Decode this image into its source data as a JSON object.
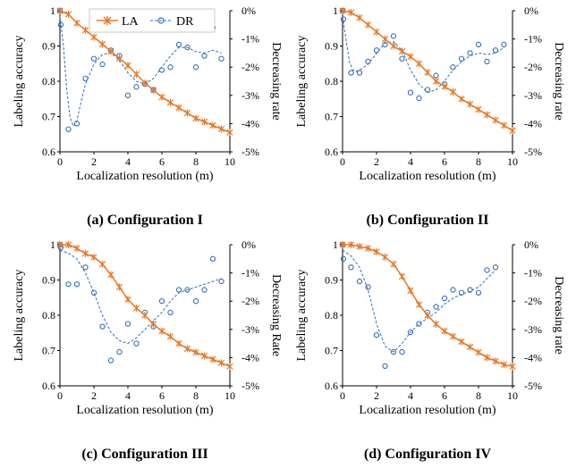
{
  "figure": {
    "legend": {
      "la_label": "LA",
      "dr_label": "DR"
    }
  },
  "chart_data": [
    {
      "type": "line",
      "caption": "(a) Configuration I",
      "xlabel": "Localization resolution (m)",
      "ylabel": "Labeling accuracy",
      "y2label": "Decreasing rate",
      "xlim": [
        0,
        10
      ],
      "ylim": [
        0.6,
        1
      ],
      "y2lim": [
        -5,
        0
      ],
      "xticks": [
        "0",
        "2",
        "4",
        "6",
        "8",
        "10"
      ],
      "yticks": [
        "0.6",
        "0.7",
        "0.8",
        "0.9",
        "1"
      ],
      "y2ticks": [
        "-5%",
        "-4%",
        "-3%",
        "-2%",
        "-1%",
        "0%"
      ],
      "legend_position": "top",
      "series": [
        {
          "name": "LA",
          "color": "#E87722",
          "marker": "asterisk",
          "x": [
            0,
            0.5,
            1,
            1.5,
            2,
            2.5,
            3,
            3.5,
            4,
            4.5,
            5,
            5.5,
            6,
            6.5,
            7,
            7.5,
            8,
            8.5,
            9,
            9.5,
            10
          ],
          "y": [
            1.0,
            0.99,
            0.965,
            0.945,
            0.925,
            0.905,
            0.885,
            0.865,
            0.845,
            0.82,
            0.795,
            0.775,
            0.755,
            0.74,
            0.725,
            0.71,
            0.695,
            0.685,
            0.675,
            0.665,
            0.655
          ]
        },
        {
          "name": "DR",
          "color": "#2F6EBA",
          "marker": "circle",
          "axis": "right",
          "x": [
            0,
            0.05,
            0.5,
            1,
            1.5,
            2,
            2.5,
            3,
            3.5,
            4,
            4.5,
            5,
            5.5,
            6,
            6.5,
            7,
            7.5,
            8,
            8.5,
            9,
            9.5
          ],
          "y": [
            0,
            -0.5,
            -4.2,
            -4.0,
            -2.4,
            -1.7,
            -1.9,
            -1.4,
            -1.6,
            -3.0,
            -2.7,
            -2.6,
            -2.8,
            -2.1,
            -2.0,
            -1.2,
            -1.3,
            -2.0,
            -1.6,
            -0.6,
            -1.7
          ],
          "trend_x": [
            0,
            0.2,
            0.4,
            0.6,
            0.8,
            1,
            1.25,
            1.5,
            2,
            2.5,
            3,
            3.5,
            4,
            4.5,
            5,
            5.5,
            6,
            6.5,
            7,
            7.5,
            8,
            8.5,
            9,
            9.5
          ],
          "trend_y": [
            -0.2,
            -1.2,
            -2.8,
            -3.8,
            -4.1,
            -3.9,
            -3.2,
            -2.6,
            -1.9,
            -1.55,
            -1.5,
            -1.75,
            -2.2,
            -2.5,
            -2.6,
            -2.4,
            -2.0,
            -1.6,
            -1.3,
            -1.3,
            -1.45,
            -1.5,
            -1.4,
            -1.5
          ]
        }
      ]
    },
    {
      "type": "line",
      "caption": "(b) Configuration II",
      "xlabel": "Localization resolution (m)",
      "ylabel": "Labeling accuracy",
      "y2label": "Decreasing rate",
      "xlim": [
        0,
        10
      ],
      "ylim": [
        0.6,
        1
      ],
      "y2lim": [
        -5,
        0
      ],
      "xticks": [
        "0",
        "2",
        "4",
        "6",
        "8",
        "10"
      ],
      "yticks": [
        "0.6",
        "0.7",
        "0.8",
        "0.9",
        "1"
      ],
      "y2ticks": [
        "-5%",
        "-4%",
        "-3%",
        "-2%",
        "-1%",
        "0%"
      ],
      "series": [
        {
          "name": "LA",
          "color": "#E87722",
          "marker": "asterisk",
          "x": [
            0,
            0.5,
            1,
            1.5,
            2,
            2.5,
            3,
            3.5,
            4,
            4.5,
            5,
            5.5,
            6,
            6.5,
            7,
            7.5,
            8,
            8.5,
            9,
            9.5,
            10
          ],
          "y": [
            1.0,
            0.995,
            0.98,
            0.96,
            0.94,
            0.92,
            0.9,
            0.885,
            0.87,
            0.85,
            0.825,
            0.8,
            0.785,
            0.77,
            0.75,
            0.735,
            0.72,
            0.705,
            0.69,
            0.675,
            0.66
          ]
        },
        {
          "name": "DR",
          "color": "#2F6EBA",
          "marker": "circle",
          "axis": "right",
          "x": [
            0,
            0.05,
            0.5,
            1,
            1.5,
            2,
            2.5,
            3,
            3.5,
            4,
            4.5,
            5,
            5.5,
            6,
            6.5,
            7,
            7.5,
            8,
            8.5,
            9,
            9.5
          ],
          "y": [
            0,
            -0.3,
            -2.2,
            -2.2,
            -1.8,
            -1.4,
            -1.2,
            -0.9,
            -1.7,
            -2.9,
            -3.1,
            -2.8,
            -2.3,
            -2.6,
            -2.0,
            -1.7,
            -1.5,
            -1.2,
            -1.8,
            -1.4,
            -1.2
          ],
          "trend_x": [
            0,
            0.2,
            0.4,
            0.6,
            0.8,
            1,
            1.5,
            2,
            2.5,
            3,
            3.5,
            4,
            4.5,
            5,
            5.5,
            6,
            6.5,
            7,
            7.5,
            8,
            8.5,
            9,
            9.5
          ],
          "trend_y": [
            -0.2,
            -1.0,
            -1.8,
            -2.1,
            -2.15,
            -2.1,
            -1.9,
            -1.5,
            -1.15,
            -1.1,
            -1.4,
            -2.1,
            -2.6,
            -2.9,
            -2.8,
            -2.5,
            -2.1,
            -1.8,
            -1.6,
            -1.5,
            -1.55,
            -1.5,
            -1.3
          ]
        }
      ]
    },
    {
      "type": "line",
      "caption": "(c) Configuration III",
      "xlabel": "Localization resolution (m)",
      "ylabel": "Labeling accuracy",
      "y2label": "Decreasing Rate",
      "xlim": [
        0,
        10
      ],
      "ylim": [
        0.6,
        1
      ],
      "y2lim": [
        -5,
        0
      ],
      "xticks": [
        "0",
        "2",
        "4",
        "6",
        "8",
        "10"
      ],
      "yticks": [
        "0.6",
        "0.7",
        "0.8",
        "0.9",
        "1"
      ],
      "y2ticks": [
        "-5%",
        "-4%",
        "-3%",
        "-2%",
        "-1%",
        "0%"
      ],
      "series": [
        {
          "name": "LA",
          "color": "#E87722",
          "marker": "asterisk",
          "x": [
            0,
            0.5,
            1,
            1.5,
            2,
            2.5,
            3,
            3.5,
            4,
            4.5,
            5,
            5.5,
            6,
            6.5,
            7,
            7.5,
            8,
            8.5,
            9,
            9.5,
            10
          ],
          "y": [
            1.0,
            1.0,
            0.99,
            0.975,
            0.965,
            0.945,
            0.915,
            0.88,
            0.845,
            0.82,
            0.8,
            0.775,
            0.755,
            0.74,
            0.72,
            0.705,
            0.695,
            0.685,
            0.675,
            0.665,
            0.655
          ]
        },
        {
          "name": "DR",
          "color": "#2F6EBA",
          "marker": "circle",
          "axis": "right",
          "x": [
            0,
            0.05,
            0.5,
            1,
            1.5,
            2,
            2.5,
            3,
            3.5,
            4,
            4.5,
            5,
            5.5,
            6,
            6.5,
            7,
            7.5,
            8,
            8.5,
            9,
            9.5
          ],
          "y": [
            0,
            -0.1,
            -1.4,
            -1.4,
            -0.8,
            -1.7,
            -2.9,
            -4.1,
            -3.8,
            -2.8,
            -3.5,
            -2.4,
            -2.9,
            -2.0,
            -2.4,
            -1.6,
            -1.6,
            -2.0,
            -1.6,
            -0.5,
            -1.3
          ],
          "trend_x": [
            0,
            0.5,
            1,
            1.5,
            2,
            2.5,
            3,
            3.5,
            4,
            4.5,
            5,
            5.5,
            6,
            6.5,
            7,
            7.5,
            8,
            8.5,
            9,
            9.5
          ],
          "trend_y": [
            -0.2,
            -0.3,
            -0.5,
            -1.0,
            -1.7,
            -2.5,
            -3.1,
            -3.4,
            -3.5,
            -3.3,
            -3.0,
            -2.7,
            -2.4,
            -2.0,
            -1.7,
            -1.6,
            -1.5,
            -1.4,
            -1.3,
            -1.2
          ]
        }
      ]
    },
    {
      "type": "line",
      "caption": "(d) Configuration IV",
      "xlabel": "Localization resolution (m)",
      "ylabel": "Labeling accuracy",
      "y2label": "Decreasing rate",
      "xlim": [
        0,
        10
      ],
      "ylim": [
        0.6,
        1
      ],
      "y2lim": [
        -5,
        0
      ],
      "xticks": [
        "0",
        "2",
        "4",
        "6",
        "8",
        "10"
      ],
      "yticks": [
        "0.6",
        "0.7",
        "0.8",
        "0.9",
        "1"
      ],
      "y2ticks": [
        "-5%",
        "-4%",
        "-3%",
        "-2%",
        "-1%",
        "0%"
      ],
      "series": [
        {
          "name": "LA",
          "color": "#E87722",
          "marker": "asterisk",
          "x": [
            0,
            0.5,
            1,
            1.5,
            2,
            2.5,
            3,
            3.5,
            4,
            4.5,
            5,
            5.5,
            6,
            6.5,
            7,
            7.5,
            8,
            8.5,
            9,
            9.5,
            10
          ],
          "y": [
            1.0,
            1.0,
            0.995,
            0.99,
            0.98,
            0.965,
            0.945,
            0.91,
            0.87,
            0.83,
            0.8,
            0.775,
            0.755,
            0.74,
            0.725,
            0.71,
            0.695,
            0.68,
            0.67,
            0.66,
            0.655
          ]
        },
        {
          "name": "DR",
          "color": "#2F6EBA",
          "marker": "circle",
          "axis": "right",
          "x": [
            0,
            0.05,
            0.5,
            1,
            1.5,
            2,
            2.5,
            3,
            3.5,
            4,
            4.5,
            5,
            5.5,
            6,
            6.5,
            7,
            7.5,
            8,
            8.5,
            9
          ],
          "y": [
            0,
            -0.5,
            -0.8,
            -1.3,
            -1.5,
            -3.2,
            -4.3,
            -3.8,
            -3.8,
            -3.1,
            -2.8,
            -2.4,
            -2.2,
            -1.9,
            -1.6,
            -1.7,
            -1.6,
            -1.7,
            -0.9,
            -0.8
          ],
          "trend_x": [
            0,
            0.5,
            1,
            1.5,
            2,
            2.5,
            3,
            3.5,
            4,
            4.5,
            5,
            5.5,
            6,
            6.5,
            7,
            7.5,
            8,
            8.5,
            9
          ],
          "trend_y": [
            -0.2,
            -0.4,
            -0.8,
            -1.6,
            -2.8,
            -3.6,
            -3.8,
            -3.5,
            -3.1,
            -2.8,
            -2.6,
            -2.4,
            -2.1,
            -1.9,
            -1.75,
            -1.65,
            -1.5,
            -1.2,
            -0.9
          ]
        }
      ]
    }
  ]
}
